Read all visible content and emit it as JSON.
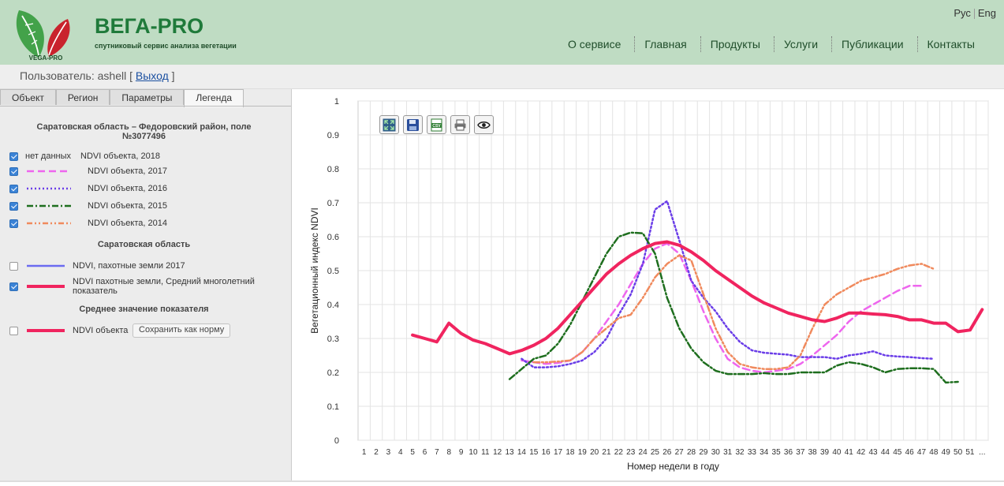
{
  "header": {
    "brand": "ВЕГА-PRO",
    "tagline": "спутниковый сервис анализа вегетации",
    "logo_text": "VEGA-PRO",
    "lang": [
      "Рус",
      "Eng"
    ],
    "nav": [
      "О сервисе",
      "Главная",
      "Продукты",
      "Услуги",
      "Публикации",
      "Контакты"
    ]
  },
  "user": {
    "label": "Пользователь: ashell [",
    "logout": "Выход",
    "close": "]"
  },
  "tabs": [
    "Объект",
    "Регион",
    "Параметры",
    "Легенда"
  ],
  "legend": {
    "object_title": "Саратовская область – Федоровский район, поле №3077496",
    "items": [
      {
        "checked": true,
        "sample_text": "нет данных",
        "label": "NDVI объекта, 2018"
      },
      {
        "checked": true,
        "label": "NDVI объекта, 2017",
        "color": "#ee66ee",
        "style": "dash"
      },
      {
        "checked": true,
        "label": "NDVI объекта, 2016",
        "color": "#6a3de8",
        "style": "dot"
      },
      {
        "checked": true,
        "label": "NDVI объекта, 2015",
        "color": "#1e6e1e",
        "style": "dashdot"
      },
      {
        "checked": true,
        "label": "NDVI объекта, 2014",
        "color": "#f08a5d",
        "style": "dashdotdot"
      }
    ],
    "region_title": "Саратовская область",
    "region_items": [
      {
        "checked": false,
        "label": "NDVI, пахотные земли 2017",
        "color": "#6b6bf0"
      },
      {
        "checked": true,
        "label": "NDVI пахотные земли, Средний многолетний показатель",
        "color": "#f0245f"
      }
    ],
    "avg_title": "Среднее значение показателя",
    "avg_item": {
      "checked": false,
      "label": "NDVI объекта",
      "color": "#f0245f"
    },
    "save_button": "Сохранить как норму"
  },
  "toolbar": [
    "fit-icon",
    "save-icon",
    "csv-icon",
    "print-icon",
    "eye-icon"
  ],
  "chart_data": {
    "type": "line",
    "xlabel": "Номер недели в году",
    "ylabel": "Вегетационный индекс NDVI",
    "ylim": [
      0,
      1
    ],
    "yticks": [
      "0",
      "0.1",
      "0.2",
      "0.3",
      "0.4",
      "0.5",
      "0.6",
      "0.7",
      "0.8",
      "0.9",
      "1"
    ],
    "xticks": [
      "1",
      "2",
      "3",
      "4",
      "5",
      "6",
      "7",
      "8",
      "9",
      "10",
      "11",
      "12",
      "13",
      "14",
      "15",
      "16",
      "17",
      "18",
      "19",
      "20",
      "21",
      "22",
      "23",
      "24",
      "25",
      "26",
      "27",
      "28",
      "29",
      "30",
      "31",
      "32",
      "33",
      "34",
      "35",
      "36",
      "37",
      "38",
      "39",
      "40",
      "41",
      "42",
      "43",
      "44",
      "45",
      "46",
      "47",
      "48",
      "49",
      "50",
      "51",
      "..."
    ],
    "grid": true,
    "series": [
      {
        "name": "NDVI пахотные земли, Средний многолетний показатель",
        "color": "#f0245f",
        "style": "solid",
        "width": 4,
        "x": [
          5,
          6,
          7,
          8,
          9,
          10,
          11,
          12,
          13,
          14,
          15,
          16,
          17,
          18,
          19,
          20,
          21,
          22,
          23,
          24,
          25,
          26,
          27,
          28,
          29,
          30,
          31,
          32,
          33,
          34,
          35,
          36,
          37,
          38,
          39,
          40,
          41,
          42,
          43,
          44,
          45,
          46,
          47,
          48,
          49,
          50,
          51,
          52
        ],
        "y": [
          0.31,
          0.3,
          0.29,
          0.345,
          0.315,
          0.295,
          0.285,
          0.27,
          0.255,
          0.265,
          0.28,
          0.3,
          0.33,
          0.37,
          0.41,
          0.45,
          0.49,
          0.52,
          0.545,
          0.565,
          0.58,
          0.585,
          0.575,
          0.555,
          0.53,
          0.5,
          0.475,
          0.45,
          0.425,
          0.405,
          0.39,
          0.375,
          0.365,
          0.355,
          0.35,
          0.36,
          0.375,
          0.375,
          0.372,
          0.37,
          0.365,
          0.355,
          0.355,
          0.345,
          0.345,
          0.32,
          0.325,
          0.385
        ]
      },
      {
        "name": "NDVI объекта, 2017",
        "color": "#ee66ee",
        "style": "dash",
        "width": 2.5,
        "x": [
          14,
          15,
          16,
          17,
          18,
          19,
          20,
          21,
          22,
          23,
          24,
          25,
          26,
          27,
          28,
          29,
          30,
          31,
          32,
          33,
          34,
          35,
          36,
          37,
          38,
          39,
          40,
          41,
          42,
          43,
          44,
          45,
          46,
          47
        ],
        "y": [
          0.235,
          0.23,
          0.225,
          0.228,
          0.235,
          0.26,
          0.3,
          0.35,
          0.4,
          0.46,
          0.52,
          0.565,
          0.58,
          0.55,
          0.47,
          0.38,
          0.3,
          0.24,
          0.215,
          0.205,
          0.2,
          0.205,
          0.21,
          0.225,
          0.25,
          0.28,
          0.31,
          0.35,
          0.38,
          0.4,
          0.42,
          0.44,
          0.455,
          0.455
        ]
      },
      {
        "name": "NDVI объекта, 2016",
        "color": "#6a3de8",
        "style": "dot",
        "width": 2.5,
        "x": [
          14,
          15,
          16,
          17,
          18,
          19,
          20,
          21,
          22,
          23,
          24,
          25,
          26,
          27,
          28,
          29,
          30,
          31,
          32,
          33,
          34,
          35,
          36,
          37,
          38,
          39,
          40,
          41,
          42,
          43,
          44,
          45,
          46,
          47,
          48
        ],
        "y": [
          0.24,
          0.215,
          0.215,
          0.218,
          0.225,
          0.235,
          0.26,
          0.3,
          0.37,
          0.43,
          0.52,
          0.68,
          0.705,
          0.59,
          0.47,
          0.42,
          0.38,
          0.33,
          0.29,
          0.265,
          0.258,
          0.255,
          0.252,
          0.245,
          0.245,
          0.245,
          0.24,
          0.25,
          0.255,
          0.262,
          0.25,
          0.247,
          0.245,
          0.242,
          0.24
        ]
      },
      {
        "name": "NDVI объекта, 2015",
        "color": "#1e6e1e",
        "style": "dashdot",
        "width": 2.5,
        "x": [
          13,
          14,
          15,
          16,
          17,
          18,
          19,
          20,
          21,
          22,
          23,
          24,
          25,
          26,
          27,
          28,
          29,
          30,
          31,
          32,
          33,
          34,
          35,
          36,
          37,
          38,
          39,
          40,
          41,
          42,
          43,
          44,
          45,
          46,
          47,
          48,
          49,
          50
        ],
        "y": [
          0.18,
          0.21,
          0.24,
          0.25,
          0.285,
          0.34,
          0.41,
          0.48,
          0.55,
          0.6,
          0.612,
          0.61,
          0.55,
          0.42,
          0.33,
          0.27,
          0.23,
          0.205,
          0.195,
          0.195,
          0.195,
          0.198,
          0.195,
          0.195,
          0.2,
          0.2,
          0.2,
          0.22,
          0.23,
          0.225,
          0.215,
          0.2,
          0.21,
          0.212,
          0.212,
          0.21,
          0.17,
          0.172
        ]
      },
      {
        "name": "NDVI объекта, 2014",
        "color": "#f08a5d",
        "style": "dashdotdot",
        "width": 2.5,
        "x": [
          15,
          16,
          17,
          18,
          19,
          20,
          21,
          22,
          23,
          24,
          25,
          26,
          27,
          28,
          29,
          30,
          31,
          32,
          33,
          34,
          35,
          36,
          37,
          38,
          39,
          40,
          41,
          42,
          43,
          44,
          45,
          46,
          47,
          48
        ],
        "y": [
          0.23,
          0.23,
          0.232,
          0.235,
          0.26,
          0.3,
          0.33,
          0.36,
          0.37,
          0.42,
          0.48,
          0.52,
          0.545,
          0.53,
          0.43,
          0.33,
          0.26,
          0.225,
          0.215,
          0.21,
          0.21,
          0.215,
          0.25,
          0.33,
          0.4,
          0.43,
          0.45,
          0.47,
          0.48,
          0.49,
          0.505,
          0.515,
          0.52,
          0.505
        ]
      }
    ]
  }
}
